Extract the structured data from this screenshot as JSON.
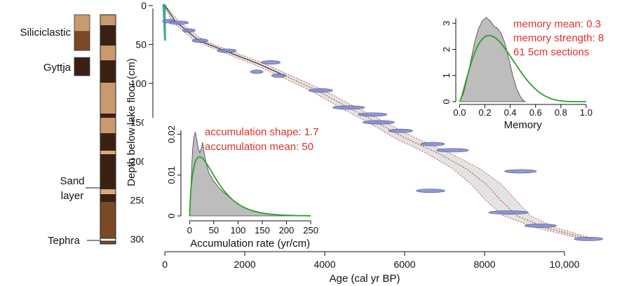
{
  "colors": {
    "siliciclastic": "#c89a6e",
    "siliciclastic_dark": "#7b4a24",
    "gyttja": "#3a2113",
    "sand": "#dcaa7d",
    "tephra": "#ffffff",
    "date_blue": "#7d86c8",
    "prior_green": "#2ca02c",
    "posterior_grey": "#bdbdbd",
    "annotation_red": "#e0302a",
    "model_red": "#c0392b",
    "surface_teal": "#1a9a8a"
  },
  "core_legend": {
    "siliciclastic": "Siliciclastic",
    "gyttja": "Gyttja",
    "sand_line1": "Sand",
    "sand_line2": "layer",
    "tephra": "Tephra"
  },
  "chart_data": [
    {
      "type": "scatter",
      "role": "age-depth model",
      "xlabel": "Age (cal yr BP)",
      "ylabel": "Depth below lake floor (cm)",
      "xlim": [
        -300,
        11000
      ],
      "ylim": [
        0,
        310
      ],
      "y_reversed": true,
      "xticks": [
        0,
        2000,
        4000,
        6000,
        8000,
        10000
      ],
      "xtick_labels": [
        "0",
        "2000",
        "4000",
        "6000",
        "8000",
        "10,000"
      ],
      "yticks": [
        0,
        50,
        100,
        150,
        200,
        250,
        300
      ],
      "dates": [
        {
          "age": 100,
          "depth": 20,
          "sd": 80
        },
        {
          "age": 350,
          "depth": 22,
          "sd": 120
        },
        {
          "age": 600,
          "depth": 32,
          "sd": 80
        },
        {
          "age": 880,
          "depth": 45,
          "sd": 100
        },
        {
          "age": 1550,
          "depth": 58,
          "sd": 120
        },
        {
          "age": 2650,
          "depth": 73,
          "sd": 120
        },
        {
          "age": 2300,
          "depth": 85,
          "sd": 80
        },
        {
          "age": 2850,
          "depth": 90,
          "sd": 90
        },
        {
          "age": 3900,
          "depth": 109,
          "sd": 150
        },
        {
          "age": 4600,
          "depth": 131,
          "sd": 200
        },
        {
          "age": 5200,
          "depth": 140,
          "sd": 180
        },
        {
          "age": 5350,
          "depth": 150,
          "sd": 200
        },
        {
          "age": 5900,
          "depth": 161,
          "sd": 150
        },
        {
          "age": 6700,
          "depth": 178,
          "sd": 150
        },
        {
          "age": 7200,
          "depth": 186,
          "sd": 200
        },
        {
          "age": 6650,
          "depth": 238,
          "sd": 180
        },
        {
          "age": 8900,
          "depth": 213,
          "sd": 200
        },
        {
          "age": 8600,
          "depth": 266,
          "sd": 250
        },
        {
          "age": 9400,
          "depth": 283,
          "sd": 200
        },
        {
          "age": 10600,
          "depth": 300,
          "sd": 180
        }
      ],
      "model": {
        "depth": [
          0,
          20,
          45,
          60,
          75,
          90,
          110,
          130,
          150,
          170,
          190,
          210,
          230,
          250,
          270,
          285,
          300
        ],
        "age": [
          0,
          260,
          850,
          1600,
          2350,
          3000,
          3850,
          4550,
          5300,
          6000,
          6850,
          7550,
          8050,
          8400,
          8800,
          9500,
          10600
        ],
        "range": [
          20,
          80,
          120,
          150,
          150,
          160,
          180,
          200,
          220,
          260,
          300,
          340,
          380,
          380,
          340,
          250,
          150
        ]
      }
    },
    {
      "type": "area",
      "role": "accumulation rate prior/posterior",
      "xlabel": "Accumulation rate (yr/cm)",
      "ylabel": "",
      "xlim": [
        -15,
        260
      ],
      "ylim": [
        0,
        0.022
      ],
      "xticks": [
        0,
        50,
        100,
        150,
        200,
        250
      ],
      "yticks": [
        0,
        0.01,
        0.02
      ],
      "ytick_labels": [
        "0",
        "0.01",
        "0.02"
      ],
      "prior": {
        "shape": 1.7,
        "mean": 50
      },
      "posterior": {
        "x": [
          0,
          3,
          6,
          9,
          12,
          15,
          18,
          21,
          24,
          27,
          30,
          35,
          40,
          50,
          60,
          70,
          80,
          90,
          100,
          110,
          120,
          140,
          160,
          180,
          200,
          220,
          240,
          250
        ],
        "y": [
          0,
          0.008,
          0.016,
          0.0195,
          0.0205,
          0.0185,
          0.0165,
          0.0155,
          0.0165,
          0.018,
          0.0155,
          0.0125,
          0.0105,
          0.0085,
          0.007,
          0.0058,
          0.0048,
          0.0038,
          0.003,
          0.0022,
          0.0016,
          0.001,
          0.0005,
          0.0003,
          0.0002,
          0.0001,
          5e-05,
          0
        ]
      },
      "annotations": [
        "accumulation shape:  1.7",
        "accumulation mean:  50"
      ]
    },
    {
      "type": "area",
      "role": "memory prior/posterior",
      "xlabel": "Memory",
      "ylabel": "",
      "xlim": [
        -0.03,
        1.05
      ],
      "ylim": [
        0,
        3.3
      ],
      "xticks": [
        0,
        0.2,
        0.4,
        0.6,
        0.8,
        1.0
      ],
      "xtick_labels": [
        "0.0",
        "0.2",
        "0.4",
        "0.6",
        "0.8",
        "1.0"
      ],
      "yticks": [
        0,
        1,
        2,
        3
      ],
      "prior": {
        "mean": 0.3,
        "strength": 8
      },
      "posterior": {
        "x": [
          0,
          0.03,
          0.06,
          0.09,
          0.12,
          0.15,
          0.18,
          0.21,
          0.24,
          0.27,
          0.3,
          0.33,
          0.36,
          0.39,
          0.42,
          0.45,
          0.48,
          0.5,
          0.52
        ],
        "y": [
          0,
          0.3,
          0.9,
          1.6,
          2.3,
          2.8,
          3.1,
          3.22,
          3.1,
          2.9,
          2.8,
          2.6,
          2.2,
          1.6,
          1.0,
          0.5,
          0.2,
          0.05,
          0
        ]
      },
      "annotations": [
        "memory mean: 0.3",
        "memory strength: 8",
        "61 5cm sections"
      ]
    }
  ]
}
